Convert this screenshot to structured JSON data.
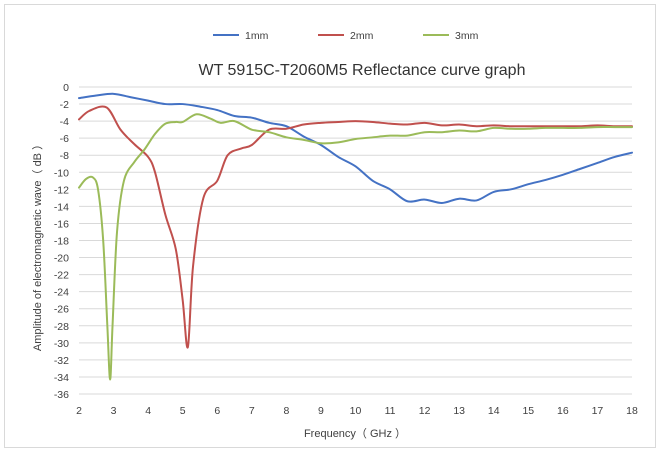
{
  "chart_data": {
    "type": "line",
    "title": "WT 5915C-T2060M5 Reflectance curve graph",
    "xlabel": "Frequency（ GHz ）",
    "ylabel": "Amplitude of electromagnetic wave（ dB ）",
    "xlim": [
      2,
      18
    ],
    "ylim": [
      -36,
      0
    ],
    "x_ticks": [
      2,
      3,
      4,
      5,
      6,
      7,
      8,
      9,
      10,
      11,
      12,
      13,
      14,
      15,
      16,
      17,
      18
    ],
    "y_ticks": [
      0,
      -2,
      -4,
      -6,
      -8,
      -10,
      -12,
      -14,
      -16,
      -18,
      -20,
      -22,
      -24,
      -26,
      -28,
      -30,
      -32,
      -34,
      -36
    ],
    "grid": "horizontal",
    "legend_position": "top",
    "series": [
      {
        "name": "1mm",
        "color": "#4472c4",
        "x": [
          2,
          2.5,
          3,
          3.5,
          4,
          4.5,
          5,
          5.5,
          6,
          6.5,
          7,
          7.5,
          8,
          8.5,
          9,
          9.5,
          10,
          10.5,
          11,
          11.5,
          12,
          12.5,
          13,
          13.5,
          14,
          14.5,
          15,
          15.5,
          16,
          16.5,
          17,
          17.5,
          18
        ],
        "y": [
          -1.3,
          -1.0,
          -0.8,
          -1.2,
          -1.6,
          -2.0,
          -2.0,
          -2.3,
          -2.7,
          -3.4,
          -3.6,
          -4.2,
          -4.6,
          -5.8,
          -6.8,
          -8.2,
          -9.3,
          -11.0,
          -12.0,
          -13.4,
          -13.2,
          -13.6,
          -13.1,
          -13.3,
          -12.3,
          -12.0,
          -11.4,
          -10.9,
          -10.3,
          -9.6,
          -8.9,
          -8.2,
          -7.7
        ]
      },
      {
        "name": "2mm",
        "color": "#c0504d",
        "x": [
          2,
          2.3,
          2.8,
          3.2,
          3.6,
          4.0,
          4.2,
          4.5,
          4.8,
          5.0,
          5.15,
          5.3,
          5.6,
          6.0,
          6.3,
          6.7,
          7.0,
          7.5,
          8,
          8.5,
          9,
          9.5,
          10,
          10.5,
          11,
          11.5,
          12,
          12.5,
          13,
          13.5,
          14,
          14.5,
          15,
          15.5,
          16,
          16.5,
          17,
          17.5,
          18
        ],
        "y": [
          -3.8,
          -2.8,
          -2.4,
          -5.0,
          -6.7,
          -8.2,
          -10.0,
          -15.0,
          -19.0,
          -25.0,
          -30.5,
          -21.0,
          -13.0,
          -11.0,
          -8.0,
          -7.2,
          -6.8,
          -5.0,
          -4.9,
          -4.4,
          -4.2,
          -4.1,
          -4.0,
          -4.1,
          -4.3,
          -4.4,
          -4.2,
          -4.5,
          -4.4,
          -4.6,
          -4.5,
          -4.6,
          -4.6,
          -4.6,
          -4.6,
          -4.6,
          -4.5,
          -4.6,
          -4.6
        ]
      },
      {
        "name": "3mm",
        "color": "#9bbb59",
        "x": [
          2,
          2.2,
          2.4,
          2.55,
          2.7,
          2.82,
          2.9,
          2.97,
          3.1,
          3.3,
          3.6,
          3.9,
          4.2,
          4.5,
          4.8,
          5.0,
          5.4,
          5.8,
          6.1,
          6.5,
          7.0,
          7.5,
          8,
          8.5,
          9,
          9.5,
          10,
          10.5,
          11,
          11.5,
          12,
          12.5,
          13,
          13.5,
          14,
          14.5,
          15,
          15.5,
          16,
          16.5,
          17,
          17.5,
          18
        ],
        "y": [
          -11.8,
          -10.8,
          -10.6,
          -12.0,
          -18.0,
          -28.0,
          -34.3,
          -28.0,
          -17.0,
          -11.0,
          -8.8,
          -7.3,
          -5.5,
          -4.3,
          -4.1,
          -4.1,
          -3.2,
          -3.7,
          -4.2,
          -4.0,
          -5.0,
          -5.3,
          -5.9,
          -6.2,
          -6.6,
          -6.5,
          -6.1,
          -5.9,
          -5.7,
          -5.7,
          -5.3,
          -5.3,
          -5.1,
          -5.2,
          -4.8,
          -4.9,
          -4.9,
          -4.8,
          -4.8,
          -4.8,
          -4.7,
          -4.7,
          -4.7
        ]
      }
    ]
  }
}
